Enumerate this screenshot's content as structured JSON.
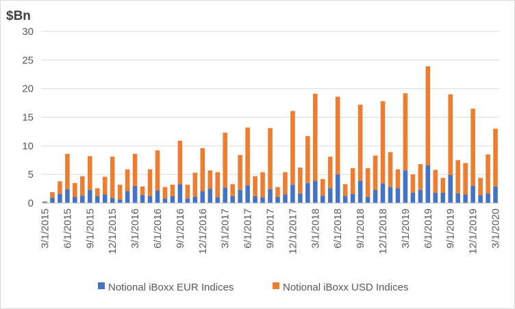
{
  "chart_data": {
    "type": "bar",
    "stacked": true,
    "ylabel": "$Bn",
    "xlabel": "",
    "ylim": [
      0,
      30
    ],
    "yticks": [
      0,
      5,
      10,
      15,
      20,
      25,
      30
    ],
    "grid": true,
    "legend_position": "bottom",
    "categories": [
      "3/1/2015",
      "4/1/2015",
      "5/1/2015",
      "6/1/2015",
      "7/1/2015",
      "8/1/2015",
      "9/1/2015",
      "10/1/2015",
      "11/1/2015",
      "12/1/2015",
      "1/1/2016",
      "2/1/2016",
      "3/1/2016",
      "4/1/2016",
      "5/1/2016",
      "6/1/2016",
      "7/1/2016",
      "8/1/2016",
      "9/1/2016",
      "10/1/2016",
      "11/1/2016",
      "12/1/2016",
      "1/1/2017",
      "2/1/2017",
      "3/1/2017",
      "4/1/2017",
      "5/1/2017",
      "6/1/2017",
      "7/1/2017",
      "8/1/2017",
      "9/1/2017",
      "10/1/2017",
      "11/1/2017",
      "12/1/2017",
      "1/1/2018",
      "2/1/2018",
      "3/1/2018",
      "4/1/2018",
      "5/1/2018",
      "6/1/2018",
      "7/1/2018",
      "8/1/2018",
      "9/1/2018",
      "10/1/2018",
      "11/1/2018",
      "12/1/2018",
      "1/1/2019",
      "2/1/2019",
      "3/1/2019",
      "4/1/2019",
      "5/1/2019",
      "6/1/2019",
      "7/1/2019",
      "8/1/2019",
      "9/1/2019",
      "10/1/2019",
      "11/1/2019",
      "12/1/2019",
      "1/1/2020",
      "2/1/2020",
      "3/1/2020"
    ],
    "tick_labels": [
      "3/1/2015",
      "6/1/2015",
      "9/1/2015",
      "12/1/2015",
      "3/1/2016",
      "6/1/2016",
      "9/1/2016",
      "12/1/2016",
      "3/1/2017",
      "6/1/2017",
      "9/1/2017",
      "12/1/2017",
      "3/1/2018",
      "6/1/2018",
      "9/1/2018",
      "12/1/2018",
      "3/1/2019",
      "6/1/2019",
      "9/1/2019",
      "12/1/2019",
      "3/1/2020"
    ],
    "series": [
      {
        "name": "Notional iBoxx EUR Indices",
        "color": "#4472c4",
        "values": [
          0.2,
          0.9,
          1.6,
          2.4,
          1.1,
          1.3,
          2.3,
          1.2,
          1.5,
          0.9,
          0.6,
          2.1,
          3.0,
          1.4,
          1.2,
          2.2,
          0.8,
          1.2,
          3.3,
          0.8,
          1.1,
          2.1,
          2.5,
          1.0,
          2.7,
          1.2,
          2.3,
          3.1,
          1.2,
          1.0,
          2.4,
          1.1,
          1.5,
          3.2,
          1.7,
          3.5,
          3.9,
          1.3,
          2.6,
          5.0,
          1.2,
          1.6,
          3.9,
          1.1,
          2.3,
          3.4,
          2.8,
          2.6,
          5.7,
          1.8,
          2.3,
          6.6,
          1.8,
          1.8,
          4.9,
          1.7,
          1.5,
          3.0,
          1.4,
          1.7,
          2.9
        ]
      },
      {
        "name": "Notional iBoxx USD Indices",
        "color": "#ed7d31",
        "values": [
          0.1,
          1.0,
          2.2,
          6.2,
          2.4,
          3.4,
          5.9,
          1.4,
          3.1,
          7.2,
          2.6,
          3.8,
          5.6,
          1.5,
          4.7,
          7.0,
          2.0,
          2.0,
          7.6,
          2.4,
          4.2,
          7.5,
          3.2,
          4.4,
          9.6,
          2.1,
          6.1,
          10.1,
          3.5,
          4.4,
          10.7,
          1.7,
          3.9,
          12.9,
          4.5,
          8.2,
          15.2,
          2.9,
          5.5,
          13.6,
          2.1,
          4.5,
          13.3,
          5.0,
          6.0,
          14.4,
          6.1,
          3.3,
          13.5,
          3.2,
          4.5,
          17.3,
          4.0,
          2.6,
          14.1,
          5.8,
          5.5,
          13.5,
          3.0,
          6.8,
          10.1
        ]
      }
    ]
  }
}
